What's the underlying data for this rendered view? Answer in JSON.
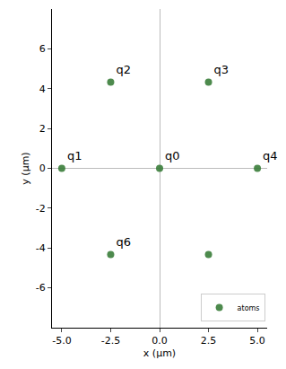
{
  "chart_data": {
    "type": "scatter",
    "xlabel": "x (µm)",
    "ylabel": "y (µm)",
    "series": [
      {
        "name": "atoms",
        "color": "#3a7d3a",
        "marker": "circle",
        "x": [
          0,
          -5,
          -2.5,
          2.5,
          5,
          2.5,
          -2.5
        ],
        "values": [
          0,
          0,
          4.33,
          4.33,
          0,
          -4.33,
          -4.33
        ],
        "labels": [
          "q0",
          "q1",
          "q2",
          "q3",
          "q4",
          null,
          "q6"
        ]
      }
    ],
    "xlim": [
      -5.5,
      5.5
    ],
    "ylim": [
      -8,
      8
    ],
    "xticks": [
      {
        "value": -5,
        "label": "-5.0"
      },
      {
        "value": -2.5,
        "label": "-2.5"
      },
      {
        "value": 0,
        "label": "0.0"
      },
      {
        "value": 2.5,
        "label": "2.5"
      },
      {
        "value": 5,
        "label": "5.0"
      }
    ],
    "yticks": [
      -6,
      -4,
      -2,
      0,
      2,
      4,
      6
    ],
    "grid": false,
    "legend": "lower right"
  }
}
